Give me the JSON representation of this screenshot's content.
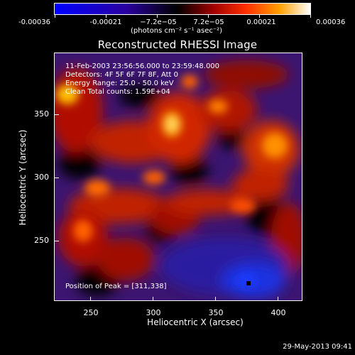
{
  "colorbar": {
    "tick_labels": [
      "-0.00036",
      "-0.00021",
      "−7.2e−05",
      "7.2e−05",
      "0.00021",
      "0.00036"
    ],
    "units": "(photons cm⁻² s⁻¹ asec⁻²)",
    "colors": [
      "#0000ff",
      "#2a00a0",
      "#000000",
      "#a00000",
      "#ff3000",
      "#ffa000",
      "#ffffff"
    ]
  },
  "title": "Reconstructed RHESSI Image",
  "info": {
    "time": "11-Feb-2003 23:56:56.000 to 23:59:48.000",
    "detectors": "Detectors: 4F 5F 6F 7F 8F, Att 0",
    "energy": "Energy Range: 25.0 - 50.0 keV",
    "clean": "Clean    Total counts: 1.59E+04"
  },
  "peak_label": "Position of Peak = [311,338]",
  "x_axis": {
    "title": "Heliocentric X (arcsec)",
    "ticks": [
      "250",
      "300",
      "350",
      "400"
    ]
  },
  "y_axis": {
    "title": "Heliocentric Y (arcsec)",
    "ticks": [
      "250",
      "300",
      "350"
    ]
  },
  "footer": "29-May-2013 09:41"
}
